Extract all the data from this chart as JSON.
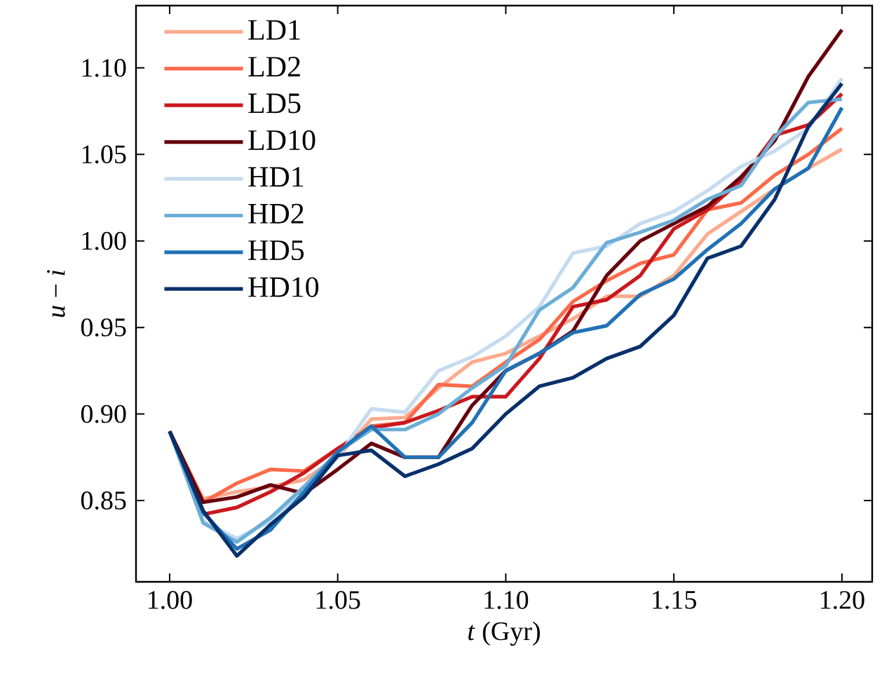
{
  "chart_data": {
    "type": "line",
    "xlabel": "*t* (Gyr)",
    "ylabel": "*u* − *i*",
    "x": [
      1.0,
      1.01,
      1.02,
      1.03,
      1.04,
      1.05,
      1.06,
      1.07,
      1.08,
      1.09,
      1.1,
      1.11,
      1.12,
      1.13,
      1.14,
      1.15,
      1.16,
      1.17,
      1.18,
      1.19,
      1.2
    ],
    "series": [
      {
        "name": "LD1",
        "color": "#fcab8f",
        "values": [
          0.89,
          0.851,
          0.855,
          0.858,
          0.862,
          0.875,
          0.897,
          0.898,
          0.915,
          0.93,
          0.935,
          0.945,
          0.955,
          0.968,
          0.968,
          0.98,
          1.004,
          1.017,
          1.03,
          1.042,
          1.053
        ]
      },
      {
        "name": "LD2",
        "color": "#fb6a4a",
        "values": [
          0.89,
          0.849,
          0.86,
          0.868,
          0.867,
          0.88,
          0.893,
          0.895,
          0.917,
          0.916,
          0.93,
          0.943,
          0.965,
          0.977,
          0.987,
          0.992,
          1.018,
          1.022,
          1.038,
          1.05,
          1.065
        ]
      },
      {
        "name": "LD5",
        "color": "#cb181d",
        "values": [
          0.89,
          0.842,
          0.846,
          0.855,
          0.866,
          0.88,
          0.892,
          0.895,
          0.902,
          0.91,
          0.91,
          0.932,
          0.962,
          0.966,
          0.98,
          1.007,
          1.018,
          1.035,
          1.061,
          1.067,
          1.085
        ]
      },
      {
        "name": "LD10",
        "color": "#67000d",
        "values": [
          0.89,
          0.849,
          0.852,
          0.859,
          0.854,
          0.868,
          0.883,
          0.875,
          0.875,
          0.905,
          0.925,
          0.935,
          0.948,
          0.98,
          1.0,
          1.01,
          1.02,
          1.037,
          1.058,
          1.095,
          1.122
        ]
      },
      {
        "name": "HD1",
        "color": "#c6dbef",
        "values": [
          0.89,
          0.838,
          0.828,
          0.838,
          0.855,
          0.875,
          0.903,
          0.901,
          0.925,
          0.933,
          0.945,
          0.962,
          0.993,
          0.997,
          1.01,
          1.017,
          1.029,
          1.043,
          1.052,
          1.065,
          1.094
        ]
      },
      {
        "name": "HD2",
        "color": "#6baed6",
        "values": [
          0.89,
          0.837,
          0.826,
          0.84,
          0.858,
          0.878,
          0.891,
          0.891,
          0.9,
          0.915,
          0.928,
          0.96,
          0.973,
          0.999,
          1.005,
          1.012,
          1.024,
          1.032,
          1.06,
          1.08,
          1.082
        ]
      },
      {
        "name": "HD5",
        "color": "#2171b5",
        "values": [
          0.89,
          0.843,
          0.822,
          0.833,
          0.855,
          0.878,
          0.893,
          0.875,
          0.875,
          0.895,
          0.925,
          0.935,
          0.947,
          0.951,
          0.969,
          0.978,
          0.995,
          1.01,
          1.03,
          1.042,
          1.077
        ]
      },
      {
        "name": "HD10",
        "color": "#08306b",
        "values": [
          0.89,
          0.844,
          0.818,
          0.836,
          0.852,
          0.876,
          0.879,
          0.864,
          0.871,
          0.88,
          0.9,
          0.916,
          0.921,
          0.932,
          0.939,
          0.957,
          0.99,
          0.997,
          1.024,
          1.066,
          1.091
        ]
      }
    ],
    "xlim": [
      0.99,
      1.209
    ],
    "ylim": [
      0.803,
      1.136
    ],
    "xticks": [
      {
        "value": 1.0,
        "label": "1.00"
      },
      {
        "value": 1.05,
        "label": "1.05"
      },
      {
        "value": 1.1,
        "label": "1.10"
      },
      {
        "value": 1.15,
        "label": "1.15"
      },
      {
        "value": 1.2,
        "label": "1.20"
      }
    ],
    "yticks": [
      {
        "value": 0.85,
        "label": "0.85"
      },
      {
        "value": 0.9,
        "label": "0.90"
      },
      {
        "value": 0.95,
        "label": "0.95"
      },
      {
        "value": 1.0,
        "label": "1.00"
      },
      {
        "value": 1.05,
        "label": "1.05"
      },
      {
        "value": 1.1,
        "label": "1.10"
      }
    ],
    "legend": "top left",
    "grid": false,
    "marker": "none",
    "line_style": "solid"
  }
}
